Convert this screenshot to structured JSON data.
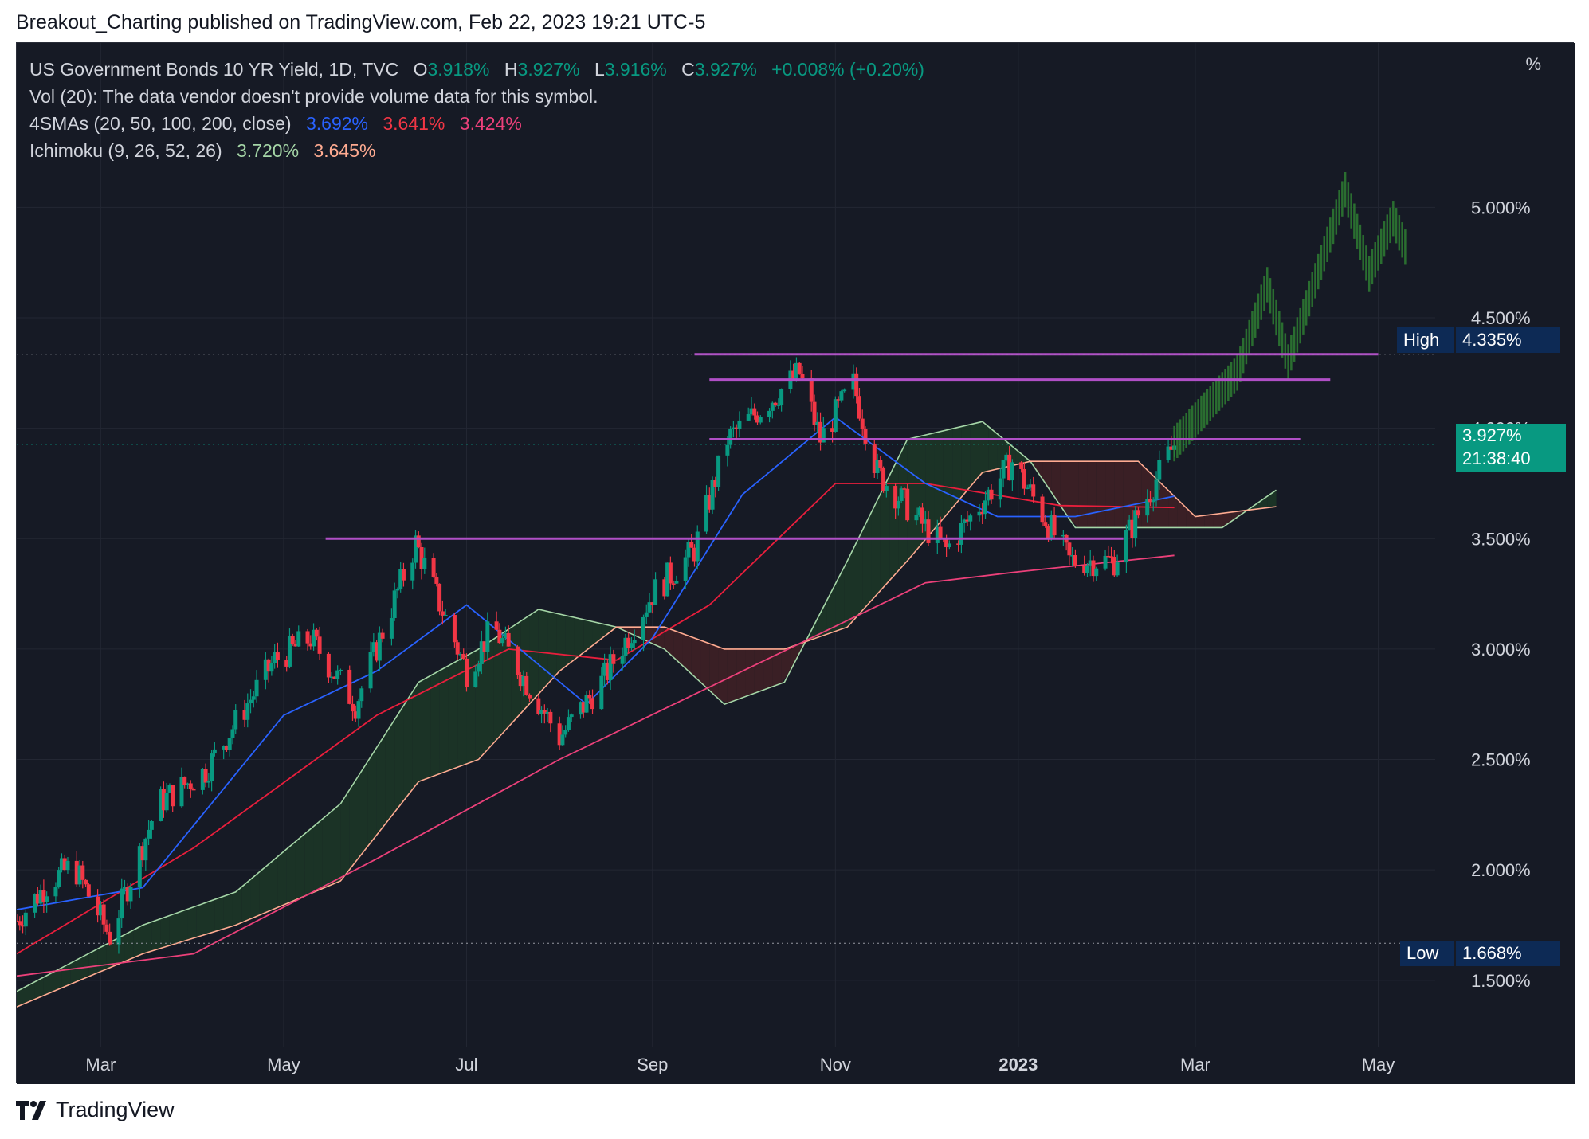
{
  "header": {
    "text": "Breakout_Charting published on TradingView.com, Feb 22, 2023 19:21 UTC-5"
  },
  "legend": {
    "symbol": "US Government Bonds 10 YR Yield, 1D, TVC",
    "o_label": "O",
    "o_value": "3.918%",
    "h_label": "H",
    "h_value": "3.927%",
    "l_label": "L",
    "l_value": "3.916%",
    "c_label": "C",
    "c_value": "3.927%",
    "change": "+0.008% (+0.20%)",
    "vol": "Vol (20): The data vendor doesn't provide volume data for this symbol.",
    "sma_label": "4SMAs (20, 50, 100, 200, close)",
    "sma_values": [
      "3.692%",
      "3.641%",
      "3.424%"
    ],
    "ichimoku_label": "Ichimoku (9, 26, 52, 26)",
    "ichimoku_values": [
      "3.720%",
      "3.645%"
    ]
  },
  "axis_unit": "%",
  "tags": {
    "high_label": "High",
    "high_value": "4.335%",
    "price_value": "3.927%",
    "countdown": "21:38:40",
    "low_label": "Low",
    "low_value": "1.668%"
  },
  "footer": {
    "brand": "TradingView"
  },
  "colors": {
    "background": "#161a25",
    "grid": "#232733",
    "text": "#d1d4dc",
    "up": "#089981",
    "down": "#f23645",
    "sma20": "#2962ff",
    "sma50": "#e91e3c",
    "sma100": "#ec407a",
    "tenkan": "#a5d6a7",
    "kijun": "#ffab91",
    "cloud_bull": "#1b3326",
    "cloud_bear": "#3a1f25",
    "level_line": "#b04fc6",
    "projection": "#2e7d32"
  },
  "chart_data": {
    "type": "candlestick",
    "title": "US Government Bonds 10 YR Yield, 1D, TVC",
    "x_ticks": [
      "Mar",
      "May",
      "Jul",
      "Sep",
      "Nov",
      "2023",
      "Mar",
      "May"
    ],
    "y_ticks": [
      "1.500%",
      "2.000%",
      "2.500%",
      "3.000%",
      "3.500%",
      "4.000%",
      "4.500%",
      "5.000%"
    ],
    "y_range": [
      1.2,
      5.6
    ],
    "x_range": [
      "2022-02-01",
      "2023-05-20"
    ],
    "ohlc_keypoints": [
      {
        "date": "2022-02-01",
        "value": 1.77
      },
      {
        "date": "2022-02-12",
        "value": 1.95
      },
      {
        "date": "2022-02-20",
        "value": 2.02
      },
      {
        "date": "2022-03-04",
        "value": 1.7
      },
      {
        "date": "2022-03-20",
        "value": 2.3
      },
      {
        "date": "2022-04-05",
        "value": 2.45
      },
      {
        "date": "2022-04-28",
        "value": 2.95
      },
      {
        "date": "2022-05-10",
        "value": 3.05
      },
      {
        "date": "2022-05-25",
        "value": 2.75
      },
      {
        "date": "2022-06-14",
        "value": 3.48
      },
      {
        "date": "2022-07-01",
        "value": 2.9
      },
      {
        "date": "2022-07-10",
        "value": 3.1
      },
      {
        "date": "2022-08-01",
        "value": 2.6
      },
      {
        "date": "2022-08-15",
        "value": 2.85
      },
      {
        "date": "2022-09-01",
        "value": 3.25
      },
      {
        "date": "2022-09-15",
        "value": 3.45
      },
      {
        "date": "2022-09-26",
        "value": 3.95
      },
      {
        "date": "2022-10-20",
        "value": 4.25
      },
      {
        "date": "2022-10-27",
        "value": 3.95
      },
      {
        "date": "2022-11-07",
        "value": 4.2
      },
      {
        "date": "2022-11-15",
        "value": 3.8
      },
      {
        "date": "2022-12-01",
        "value": 3.55
      },
      {
        "date": "2022-12-08",
        "value": 3.45
      },
      {
        "date": "2022-12-30",
        "value": 3.85
      },
      {
        "date": "2023-01-18",
        "value": 3.4
      },
      {
        "date": "2023-02-02",
        "value": 3.4
      },
      {
        "date": "2023-02-22",
        "value": 3.927
      }
    ],
    "sma20": [
      {
        "date": "2022-02-01",
        "value": 1.82
      },
      {
        "date": "2022-03-15",
        "value": 1.92
      },
      {
        "date": "2022-05-01",
        "value": 2.7
      },
      {
        "date": "2022-06-01",
        "value": 2.9
      },
      {
        "date": "2022-07-01",
        "value": 3.2
      },
      {
        "date": "2022-08-10",
        "value": 2.75
      },
      {
        "date": "2022-09-01",
        "value": 3.05
      },
      {
        "date": "2022-10-01",
        "value": 3.7
      },
      {
        "date": "2022-11-01",
        "value": 4.05
      },
      {
        "date": "2022-12-01",
        "value": 3.75
      },
      {
        "date": "2022-12-25",
        "value": 3.6
      },
      {
        "date": "2023-01-20",
        "value": 3.6
      },
      {
        "date": "2023-02-22",
        "value": 3.692
      }
    ],
    "sma50": [
      {
        "date": "2022-02-01",
        "value": 1.62
      },
      {
        "date": "2022-04-01",
        "value": 2.1
      },
      {
        "date": "2022-06-01",
        "value": 2.7
      },
      {
        "date": "2022-07-15",
        "value": 3.0
      },
      {
        "date": "2022-08-20",
        "value": 2.95
      },
      {
        "date": "2022-09-20",
        "value": 3.2
      },
      {
        "date": "2022-11-01",
        "value": 3.75
      },
      {
        "date": "2022-12-01",
        "value": 3.75
      },
      {
        "date": "2023-01-15",
        "value": 3.65
      },
      {
        "date": "2023-02-22",
        "value": 3.641
      }
    ],
    "sma100": [
      {
        "date": "2022-02-01",
        "value": 1.52
      },
      {
        "date": "2022-04-01",
        "value": 1.62
      },
      {
        "date": "2022-06-01",
        "value": 2.05
      },
      {
        "date": "2022-08-01",
        "value": 2.5
      },
      {
        "date": "2022-10-01",
        "value": 2.9
      },
      {
        "date": "2022-12-01",
        "value": 3.3
      },
      {
        "date": "2023-01-01",
        "value": 3.35
      },
      {
        "date": "2023-02-22",
        "value": 3.424
      }
    ],
    "ichimoku_tenkan_cloud": [
      {
        "date": "2022-02-01",
        "value": 1.45
      },
      {
        "date": "2022-03-15",
        "value": 1.75
      },
      {
        "date": "2022-04-15",
        "value": 1.9
      },
      {
        "date": "2022-05-20",
        "value": 2.3
      },
      {
        "date": "2022-06-15",
        "value": 2.85
      },
      {
        "date": "2022-07-05",
        "value": 3.0
      },
      {
        "date": "2022-07-25",
        "value": 3.18
      },
      {
        "date": "2022-08-20",
        "value": 3.1
      },
      {
        "date": "2022-09-05",
        "value": 3.0
      },
      {
        "date": "2022-09-25",
        "value": 2.75
      },
      {
        "date": "2022-10-15",
        "value": 2.85
      },
      {
        "date": "2022-11-05",
        "value": 3.4
      },
      {
        "date": "2022-11-25",
        "value": 3.95
      },
      {
        "date": "2022-12-20",
        "value": 4.03
      },
      {
        "date": "2023-01-05",
        "value": 3.85
      },
      {
        "date": "2023-01-20",
        "value": 3.55
      },
      {
        "date": "2023-02-10",
        "value": 3.55
      },
      {
        "date": "2023-03-10",
        "value": 3.55
      },
      {
        "date": "2023-03-28",
        "value": 3.72
      }
    ],
    "ichimoku_kijun_cloud": [
      {
        "date": "2022-02-01",
        "value": 1.38
      },
      {
        "date": "2022-03-15",
        "value": 1.62
      },
      {
        "date": "2022-04-15",
        "value": 1.75
      },
      {
        "date": "2022-05-20",
        "value": 1.95
      },
      {
        "date": "2022-06-15",
        "value": 2.4
      },
      {
        "date": "2022-07-05",
        "value": 2.5
      },
      {
        "date": "2022-08-01",
        "value": 2.9
      },
      {
        "date": "2022-08-20",
        "value": 3.1
      },
      {
        "date": "2022-09-05",
        "value": 3.1
      },
      {
        "date": "2022-09-25",
        "value": 3.0
      },
      {
        "date": "2022-10-15",
        "value": 3.0
      },
      {
        "date": "2022-11-05",
        "value": 3.1
      },
      {
        "date": "2022-11-25",
        "value": 3.4
      },
      {
        "date": "2022-12-20",
        "value": 3.8
      },
      {
        "date": "2023-01-05",
        "value": 3.85
      },
      {
        "date": "2023-01-20",
        "value": 3.85
      },
      {
        "date": "2023-02-10",
        "value": 3.85
      },
      {
        "date": "2023-03-01",
        "value": 3.6
      },
      {
        "date": "2023-03-28",
        "value": 3.645
      }
    ],
    "horizontal_levels": [
      {
        "value": 4.335,
        "from": "2022-09-15",
        "to": "2023-05-01"
      },
      {
        "value": 4.22,
        "from": "2022-09-20",
        "to": "2023-04-15"
      },
      {
        "value": 3.95,
        "from": "2022-09-20",
        "to": "2023-04-05"
      },
      {
        "value": 3.5,
        "from": "2022-05-15",
        "to": "2023-02-05"
      }
    ],
    "projection": [
      {
        "date": "2023-02-22",
        "value": 3.93
      },
      {
        "date": "2023-03-15",
        "value": 4.25
      },
      {
        "date": "2023-03-25",
        "value": 4.65
      },
      {
        "date": "2023-04-01",
        "value": 4.3
      },
      {
        "date": "2023-04-12",
        "value": 4.75
      },
      {
        "date": "2023-04-20",
        "value": 5.08
      },
      {
        "date": "2023-04-28",
        "value": 4.7
      },
      {
        "date": "2023-05-06",
        "value": 4.95
      },
      {
        "date": "2023-05-10",
        "value": 4.82
      }
    ],
    "high": 4.335,
    "low": 1.668,
    "last": 3.927
  }
}
